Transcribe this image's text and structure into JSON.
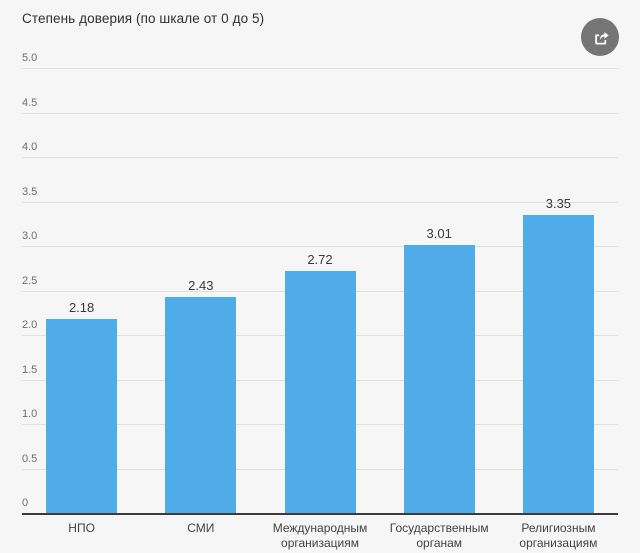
{
  "header": {
    "title": "Степень доверия (по шкале от 0 до 5)",
    "share_icon": "share-icon"
  },
  "colors": {
    "background": "#f6f6f6",
    "bar": "#4FACE8",
    "grid": "#e0e0e0",
    "axis": "#3c3c3c",
    "share_button": "#757575",
    "tick_text": "#6e6e6e",
    "label_text": "#424242"
  },
  "chart_data": {
    "type": "bar",
    "title": "Степень доверия (по шкале от 0 до 5)",
    "categories": [
      "НПО",
      "СМИ",
      "Международным организациям",
      "Государственным органам",
      "Религиозным организациям"
    ],
    "values": [
      2.18,
      2.43,
      2.72,
      3.01,
      3.35
    ],
    "value_labels": [
      "2.18",
      "2.43",
      "2.72",
      "3.01",
      "3.35"
    ],
    "xlabel": "",
    "ylabel": "",
    "ylim": [
      0,
      5
    ],
    "yticks": [
      "5.0",
      "4.5",
      "4.0",
      "3.5",
      "3.0",
      "2.5",
      "2.0",
      "1.5",
      "1.0",
      "0.5",
      "0"
    ],
    "grid": true,
    "legend": "none",
    "bar_color": "#4FACE8"
  }
}
